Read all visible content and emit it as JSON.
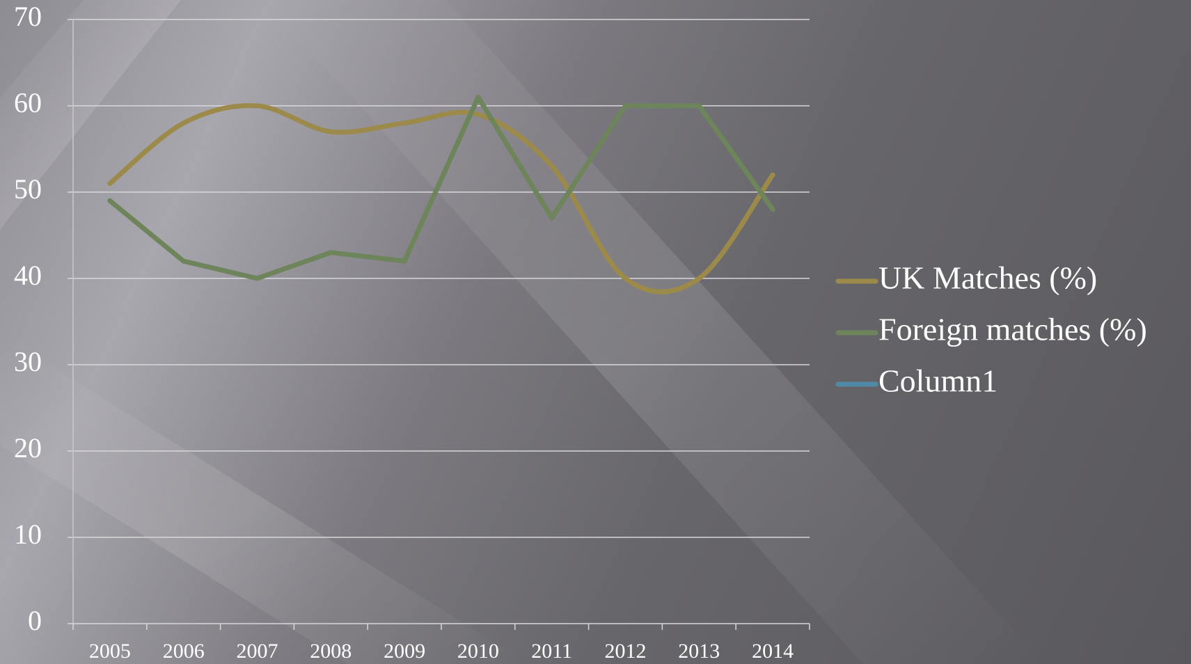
{
  "chart_data": {
    "type": "line",
    "categories": [
      "2005",
      "2006",
      "2007",
      "2008",
      "2009",
      "2010",
      "2011",
      "2012",
      "2013",
      "2014"
    ],
    "series": [
      {
        "name": "UK Matches (%)",
        "color": "#9c8a4a",
        "smooth": true,
        "values": [
          51,
          58,
          60,
          57,
          58,
          59,
          53,
          40,
          40,
          52
        ]
      },
      {
        "name": "Foreign matches (%)",
        "color": "#6e845a",
        "smooth": false,
        "values": [
          49,
          42,
          40,
          43,
          42,
          61,
          47,
          60,
          60,
          48
        ]
      },
      {
        "name": "Column1",
        "color": "#4f8aa6",
        "smooth": false,
        "values": [
          null,
          null,
          null,
          null,
          null,
          null,
          null,
          null,
          null,
          null
        ]
      }
    ],
    "ylim": [
      0,
      70
    ],
    "yticks": [
      0,
      10,
      20,
      30,
      40,
      50,
      60,
      70
    ],
    "grid": true,
    "legend": "right"
  }
}
